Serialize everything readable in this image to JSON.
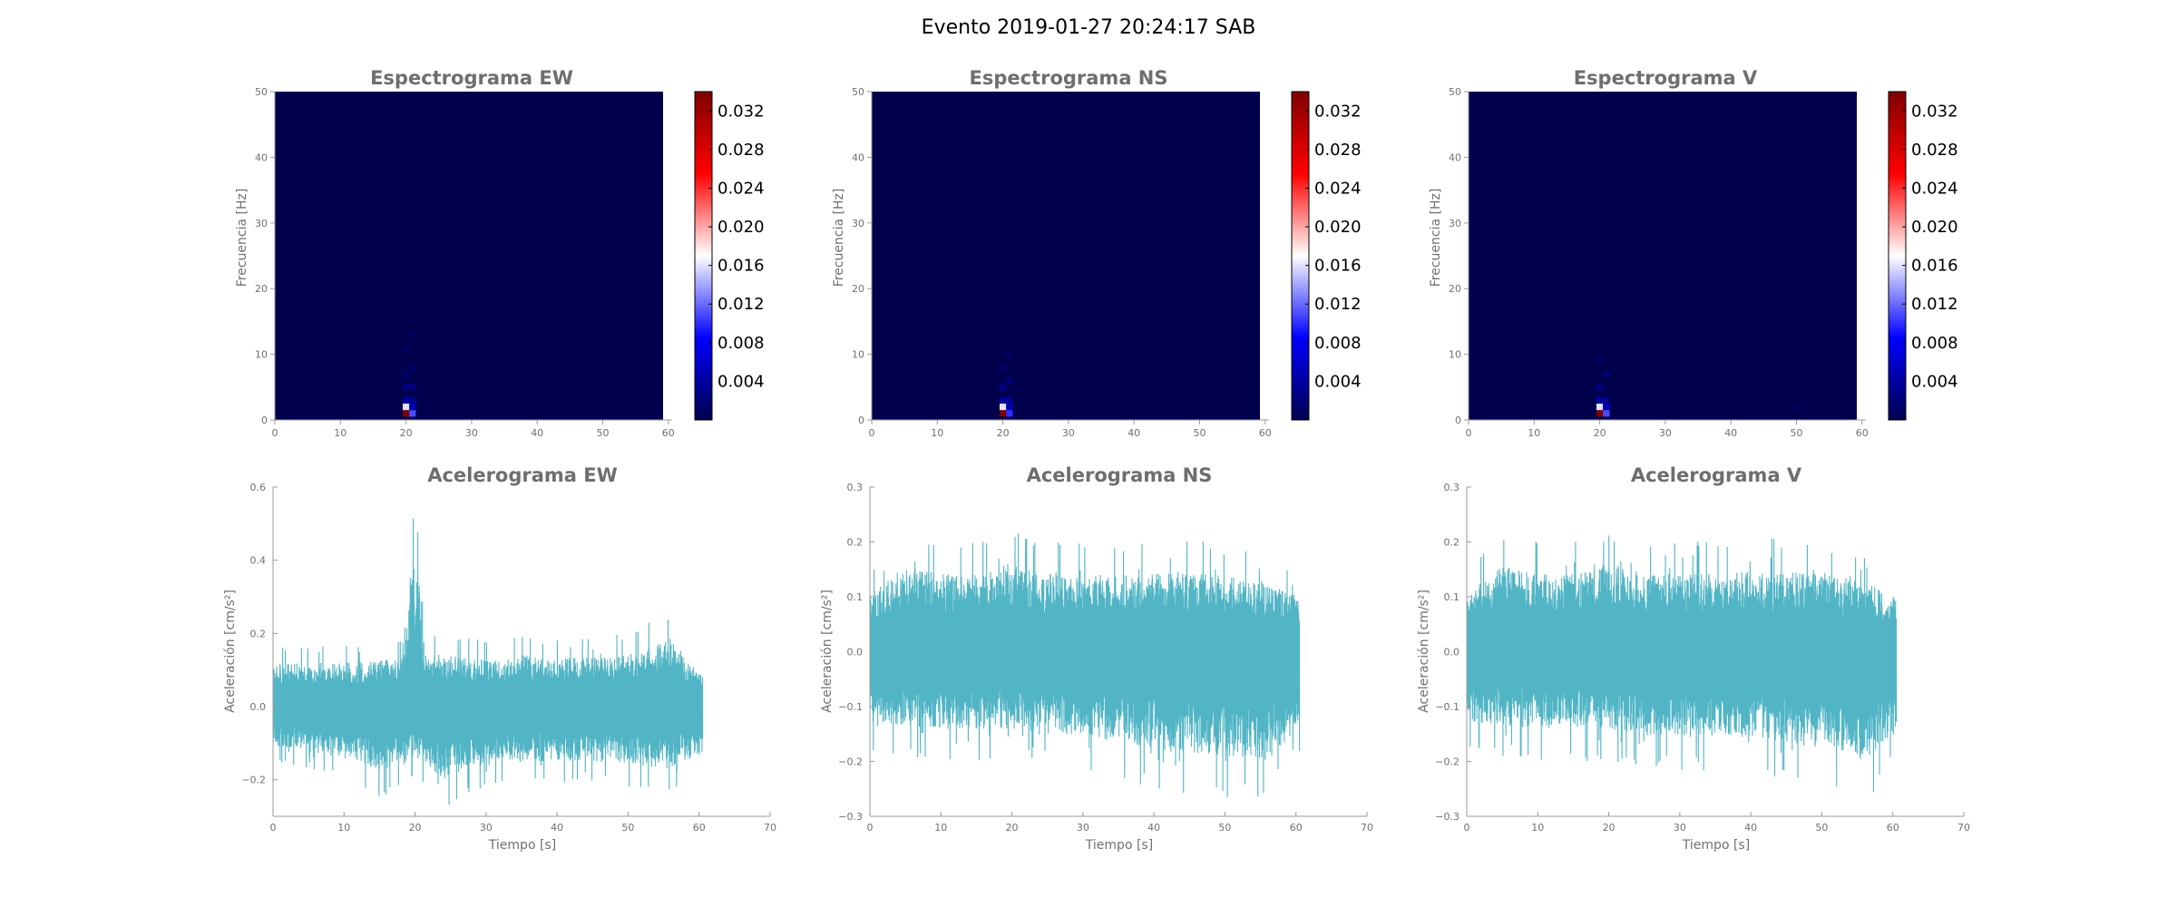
{
  "figure": {
    "title": "Evento 2019-01-27 20:24:17 SAB"
  },
  "colors": {
    "spectrogram_background": "#00004d",
    "accelerogram_line": "#52b5c6"
  },
  "chart_data": [
    {
      "id": "spec-ew",
      "type": "heatmap",
      "title": "Espectrograma EW",
      "xlabel": "",
      "ylabel": "Frecuencia [Hz]",
      "xlim": [
        0,
        60
      ],
      "ylim": [
        0,
        50
      ],
      "xticks": [
        "0",
        "10",
        "20",
        "30",
        "40",
        "50",
        "60"
      ],
      "yticks": [
        "0",
        "10",
        "20",
        "30",
        "40",
        "50"
      ],
      "colorbar": {
        "min": 0,
        "max": 0.034,
        "ticks": [
          "0.004",
          "0.008",
          "0.012",
          "0.016",
          "0.020",
          "0.024",
          "0.028",
          "0.032"
        ]
      },
      "hotspots": [
        {
          "t": 20.0,
          "f": 1.0,
          "value": 0.034
        },
        {
          "t": 20.0,
          "f": 2.0,
          "value": 0.016
        },
        {
          "t": 21.0,
          "f": 1.0,
          "value": 0.011
        },
        {
          "t": 21.0,
          "f": 2.0,
          "value": 0.005
        },
        {
          "t": 20.0,
          "f": 3.0,
          "value": 0.004
        },
        {
          "t": 21.0,
          "f": 3.0,
          "value": 0.003
        },
        {
          "t": 20.0,
          "f": 5.0,
          "value": 0.0025
        },
        {
          "t": 21.0,
          "f": 5.0,
          "value": 0.002
        },
        {
          "t": 20.0,
          "f": 7.0,
          "value": 0.0015
        },
        {
          "t": 21.0,
          "f": 8.0,
          "value": 0.0012
        },
        {
          "t": 20.0,
          "f": 11.0,
          "value": 0.001
        },
        {
          "t": 21.0,
          "f": 13.0,
          "value": 0.0008
        }
      ]
    },
    {
      "id": "spec-ns",
      "type": "heatmap",
      "title": "Espectrograma NS",
      "xlabel": "",
      "ylabel": "Frecuencia [Hz]",
      "xlim": [
        0,
        60
      ],
      "ylim": [
        0,
        50
      ],
      "xticks": [
        "0",
        "10",
        "20",
        "30",
        "40",
        "50",
        "60"
      ],
      "yticks": [
        "0",
        "10",
        "20",
        "30",
        "40",
        "50"
      ],
      "colorbar": {
        "min": 0,
        "max": 0.034,
        "ticks": [
          "0.004",
          "0.008",
          "0.012",
          "0.016",
          "0.020",
          "0.024",
          "0.028",
          "0.032"
        ]
      },
      "hotspots": [
        {
          "t": 20.0,
          "f": 1.0,
          "value": 0.034
        },
        {
          "t": 20.0,
          "f": 2.0,
          "value": 0.016
        },
        {
          "t": 21.0,
          "f": 1.0,
          "value": 0.01
        },
        {
          "t": 21.0,
          "f": 2.0,
          "value": 0.005
        },
        {
          "t": 20.0,
          "f": 3.0,
          "value": 0.004
        },
        {
          "t": 21.0,
          "f": 3.0,
          "value": 0.003
        },
        {
          "t": 20.0,
          "f": 5.0,
          "value": 0.0025
        },
        {
          "t": 21.0,
          "f": 6.0,
          "value": 0.002
        },
        {
          "t": 20.0,
          "f": 8.0,
          "value": 0.0015
        },
        {
          "t": 21.0,
          "f": 10.0,
          "value": 0.001
        }
      ]
    },
    {
      "id": "spec-v",
      "type": "heatmap",
      "title": "Espectrograma V",
      "xlabel": "",
      "ylabel": "Frecuencia [Hz]",
      "xlim": [
        0,
        60
      ],
      "ylim": [
        0,
        50
      ],
      "xticks": [
        "0",
        "10",
        "20",
        "30",
        "40",
        "50",
        "60"
      ],
      "yticks": [
        "0",
        "10",
        "20",
        "30",
        "40",
        "50"
      ],
      "colorbar": {
        "min": 0,
        "max": 0.034,
        "ticks": [
          "0.004",
          "0.008",
          "0.012",
          "0.016",
          "0.020",
          "0.024",
          "0.028",
          "0.032"
        ]
      },
      "hotspots": [
        {
          "t": 20.0,
          "f": 1.0,
          "value": 0.034
        },
        {
          "t": 20.0,
          "f": 2.0,
          "value": 0.016
        },
        {
          "t": 21.0,
          "f": 1.0,
          "value": 0.011
        },
        {
          "t": 21.0,
          "f": 2.0,
          "value": 0.005
        },
        {
          "t": 20.0,
          "f": 3.0,
          "value": 0.004
        },
        {
          "t": 21.0,
          "f": 3.0,
          "value": 0.003
        },
        {
          "t": 20.0,
          "f": 5.0,
          "value": 0.0025
        },
        {
          "t": 21.0,
          "f": 7.0,
          "value": 0.0018
        },
        {
          "t": 20.0,
          "f": 9.0,
          "value": 0.0012
        },
        {
          "t": 50.0,
          "f": 2.0,
          "value": 0.0008
        }
      ]
    },
    {
      "id": "acc-ew",
      "type": "line",
      "title": "Acelerograma EW",
      "xlabel": "Tiempo [s]",
      "ylabel": "Aceleración [cm/s²]",
      "xlim": [
        0,
        70
      ],
      "ylim": [
        -0.3,
        0.6
      ],
      "xticks": [
        "0",
        "10",
        "20",
        "30",
        "40",
        "50",
        "60",
        "70"
      ],
      "yticks": [
        "−0.2",
        "0.0",
        "0.2",
        "0.4",
        "0.6"
      ],
      "ytick_values": [
        -0.2,
        0.0,
        0.2,
        0.4,
        0.6
      ],
      "duration": 60.5,
      "envelope": [
        [
          0,
          0.17
        ],
        [
          5,
          0.17
        ],
        [
          10,
          0.17
        ],
        [
          15,
          0.18
        ],
        [
          18,
          0.19
        ],
        [
          19.5,
          0.55
        ],
        [
          20.5,
          0.52
        ],
        [
          21.5,
          0.2
        ],
        [
          25,
          0.2
        ],
        [
          30,
          0.18
        ],
        [
          35,
          0.2
        ],
        [
          40,
          0.19
        ],
        [
          45,
          0.19
        ],
        [
          50,
          0.2
        ],
        [
          56,
          0.27
        ],
        [
          58,
          0.18
        ],
        [
          60.5,
          0.12
        ]
      ],
      "lower_envelope": [
        [
          0,
          -0.15
        ],
        [
          10,
          -0.2
        ],
        [
          15,
          -0.25
        ],
        [
          20,
          -0.2
        ],
        [
          24,
          -0.28
        ],
        [
          30,
          -0.22
        ],
        [
          40,
          -0.21
        ],
        [
          50,
          -0.22
        ],
        [
          55,
          -0.25
        ],
        [
          60.5,
          -0.18
        ]
      ]
    },
    {
      "id": "acc-ns",
      "type": "line",
      "title": "Acelerograma NS",
      "xlabel": "Tiempo [s]",
      "ylabel": "Aceleración [cm/s²]",
      "xlim": [
        0,
        70
      ],
      "ylim": [
        -0.3,
        0.3
      ],
      "xticks": [
        "0",
        "10",
        "20",
        "30",
        "40",
        "50",
        "60",
        "70"
      ],
      "yticks": [
        "−0.3",
        "−0.2",
        "−0.1",
        "0.0",
        "0.1",
        "0.2",
        "0.3"
      ],
      "ytick_values": [
        -0.3,
        -0.2,
        -0.1,
        0.0,
        0.1,
        0.2,
        0.3
      ],
      "duration": 60.5,
      "envelope": [
        [
          0,
          0.15
        ],
        [
          5,
          0.22
        ],
        [
          10,
          0.2
        ],
        [
          15,
          0.2
        ],
        [
          20,
          0.23
        ],
        [
          25,
          0.2
        ],
        [
          30,
          0.2
        ],
        [
          40,
          0.21
        ],
        [
          50,
          0.2
        ],
        [
          56,
          0.18
        ],
        [
          60.5,
          0.14
        ]
      ],
      "lower_envelope": [
        [
          0,
          -0.18
        ],
        [
          10,
          -0.2
        ],
        [
          20,
          -0.2
        ],
        [
          30,
          -0.22
        ],
        [
          40,
          -0.25
        ],
        [
          50,
          -0.27
        ],
        [
          56,
          -0.28
        ],
        [
          60.5,
          -0.2
        ]
      ]
    },
    {
      "id": "acc-v",
      "type": "line",
      "title": "Acelerograma V",
      "xlabel": "Tiempo [s]",
      "ylabel": "Aceleración [cm/s²]",
      "xlim": [
        0,
        70
      ],
      "ylim": [
        -0.3,
        0.3
      ],
      "xticks": [
        "0",
        "10",
        "20",
        "30",
        "40",
        "50",
        "60",
        "70"
      ],
      "yticks": [
        "−0.3",
        "−0.2",
        "−0.1",
        "0.0",
        "0.1",
        "0.2",
        "0.3"
      ],
      "ytick_values": [
        -0.3,
        -0.2,
        -0.1,
        0.0,
        0.1,
        0.2,
        0.3
      ],
      "duration": 60.5,
      "envelope": [
        [
          0,
          0.15
        ],
        [
          5,
          0.22
        ],
        [
          10,
          0.2
        ],
        [
          15,
          0.2
        ],
        [
          20,
          0.23
        ],
        [
          25,
          0.2
        ],
        [
          30,
          0.2
        ],
        [
          40,
          0.21
        ],
        [
          50,
          0.2
        ],
        [
          56,
          0.18
        ],
        [
          60.5,
          0.14
        ]
      ],
      "lower_envelope": [
        [
          0,
          -0.18
        ],
        [
          10,
          -0.2
        ],
        [
          20,
          -0.2
        ],
        [
          30,
          -0.22
        ],
        [
          40,
          -0.22
        ],
        [
          50,
          -0.25
        ],
        [
          56,
          -0.28
        ],
        [
          60.5,
          -0.2
        ]
      ]
    }
  ]
}
